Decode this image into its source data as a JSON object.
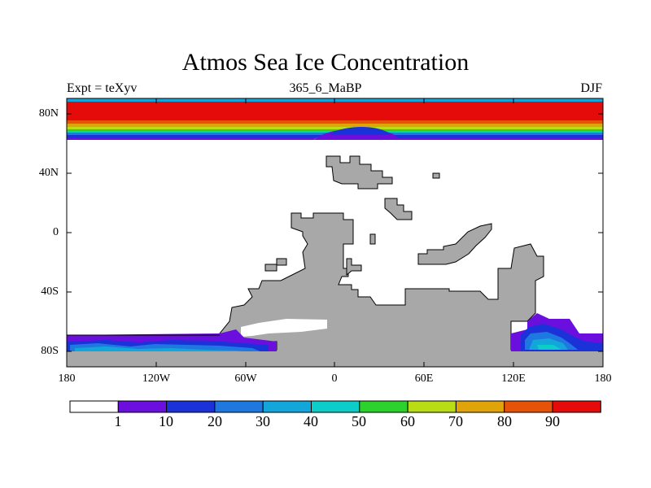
{
  "title": "Atmos Sea Ice Concentration",
  "subtitle_left": "Expt = teXyv",
  "subtitle_center": "365_6_MaBP",
  "subtitle_right": "DJF",
  "y_ticks": [
    "80N",
    "40N",
    "0",
    "40S",
    "80S"
  ],
  "x_ticks": [
    "180",
    "120W",
    "60W",
    "0",
    "60E",
    "120E",
    "180"
  ],
  "colorbar": {
    "labels": [
      "1",
      "10",
      "20",
      "30",
      "40",
      "50",
      "60",
      "70",
      "80",
      "90"
    ],
    "colors": [
      "#ffffff",
      "#6a0fdd",
      "#1a32d8",
      "#1f78e0",
      "#12a6da",
      "#0ccdc8",
      "#2bd22b",
      "#b9dd15",
      "#e0a30a",
      "#e65208",
      "#e50b0b"
    ]
  },
  "land_color": "#a8a8a8",
  "chart_data": {
    "type": "heatmap",
    "variable": "sea ice concentration",
    "levels": [
      1,
      10,
      20,
      30,
      40,
      50,
      60,
      70,
      80,
      90
    ],
    "xlim": [
      -180,
      180
    ],
    "ylim": [
      -90,
      90
    ],
    "regions": [
      {
        "region": "Arctic (north of ~65N)",
        "concentration": ">90 near pole, grading to 1-10 near 65N"
      },
      {
        "region": "Antarctic margin, 180-60W",
        "concentration": "20-50 with patches of 10-20"
      },
      {
        "region": "Antarctic margin, 120E-180",
        "concentration": "1-60, mostly 10-40"
      }
    ]
  }
}
